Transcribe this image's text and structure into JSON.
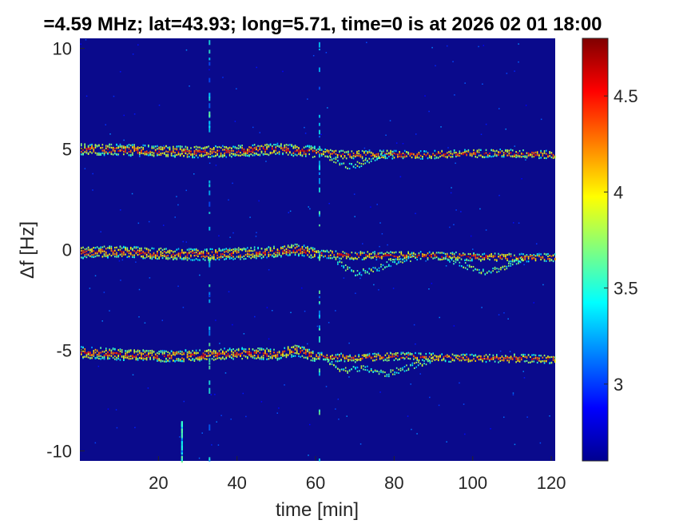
{
  "chart_data": {
    "type": "heatmap",
    "title": "=4.59 MHz;  lat=43.93; long=5.71, time=0 is at 2026 02 01 18:00",
    "xlabel": "time [min]",
    "ylabel": "Δf [Hz]",
    "xlim": [
      0,
      121
    ],
    "ylim": [
      -10.5,
      10.5
    ],
    "x_ticks": [
      20,
      40,
      60,
      80,
      100,
      120
    ],
    "x_tick_labels": [
      "20",
      "40",
      "60",
      "80",
      "100",
      "120"
    ],
    "y_ticks": [
      10,
      5,
      0,
      -5,
      -10
    ],
    "y_tick_labels": [
      "10",
      "5",
      "0",
      "-5",
      "-10"
    ],
    "colorbar": {
      "range": [
        2.6,
        4.8
      ],
      "ticks": [
        4.5,
        4,
        3.5,
        3
      ],
      "tick_labels": [
        "4.5",
        "4",
        "3.5",
        "3"
      ],
      "colormap": "jet"
    },
    "background_color": "#0a0a8c",
    "series": [
      {
        "time": [
          0,
          10,
          20,
          30,
          40,
          50,
          60,
          68,
          75,
          85,
          95,
          105,
          115,
          121
        ],
        "df": [
          5.0,
          4.95,
          4.9,
          4.85,
          4.9,
          5.0,
          4.85,
          4.7,
          4.75,
          4.7,
          4.75,
          4.8,
          4.75,
          4.7
        ]
      },
      {
        "time": [
          0,
          10,
          20,
          30,
          40,
          50,
          55,
          60,
          70,
          80,
          90,
          100,
          110,
          121
        ],
        "df": [
          -0.15,
          -0.1,
          -0.2,
          -0.25,
          -0.2,
          -0.1,
          0.0,
          -0.2,
          -0.3,
          -0.3,
          -0.3,
          -0.35,
          -0.4,
          -0.4
        ]
      },
      {
        "time": [
          0,
          10,
          20,
          30,
          40,
          50,
          55,
          60,
          70,
          80,
          90,
          100,
          110,
          121
        ],
        "df": [
          -5.1,
          -5.2,
          -5.3,
          -5.25,
          -5.15,
          -5.2,
          -5.0,
          -5.3,
          -5.4,
          -5.3,
          -5.35,
          -5.4,
          -5.4,
          -5.45
        ]
      }
    ],
    "secondary_traces": [
      {
        "time": [
          63,
          68,
          72,
          76,
          80
        ],
        "df": [
          4.6,
          4.1,
          4.3,
          4.6,
          4.75
        ]
      },
      {
        "time": [
          65,
          70,
          75,
          80,
          85
        ],
        "df": [
          -0.6,
          -1.2,
          -1.0,
          -0.6,
          -0.4
        ]
      },
      {
        "time": [
          93,
          98,
          103,
          108,
          113
        ],
        "df": [
          -0.4,
          -0.8,
          -1.1,
          -0.9,
          -0.4
        ]
      },
      {
        "time": [
          63,
          67,
          72,
          78,
          84,
          90
        ],
        "df": [
          -5.6,
          -6.0,
          -5.9,
          -6.2,
          -5.8,
          -5.5
        ]
      }
    ],
    "vertical_streaks": [
      {
        "time": 33,
        "df": [
          -10.5,
          10.5
        ]
      },
      {
        "time": 61,
        "df": [
          -10.5,
          10.5
        ]
      },
      {
        "time": 26,
        "df": [
          -10.5,
          -8.5
        ]
      }
    ]
  }
}
